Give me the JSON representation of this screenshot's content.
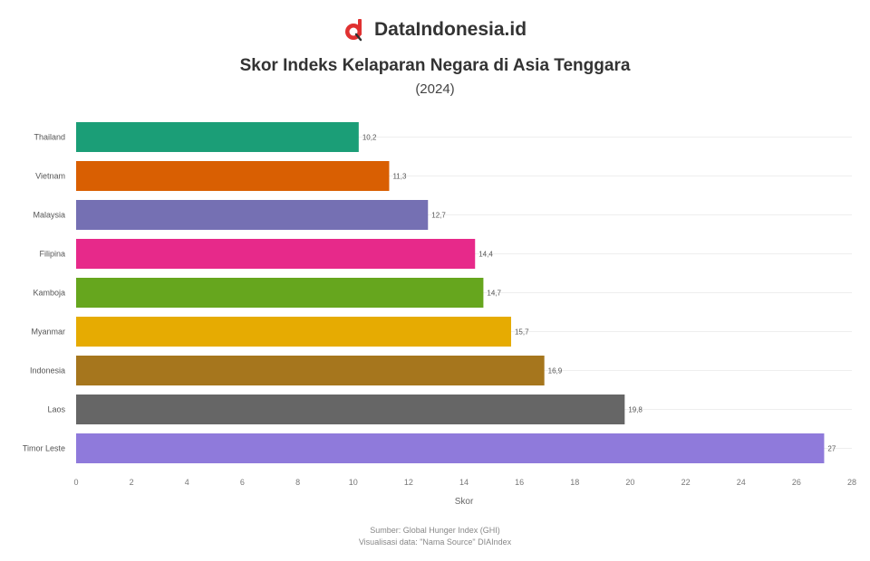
{
  "brand": {
    "name": "DataIndonesia.id",
    "logo_icon": "dataindonesia-logo-icon"
  },
  "footer": {
    "source": "Sumber: Global Hunger Index (GHI)",
    "credit": "Visualisasi data: \"Nama Source\" DIAIndex"
  },
  "colors": {
    "bar_colors": [
      "#1b9e77",
      "#d95f02",
      "#7570b3",
      "#e7298a",
      "#66a61e",
      "#e6ab02",
      "#a6761d",
      "#666666",
      "#8f7adb"
    ]
  },
  "chart_data": {
    "type": "bar",
    "orientation": "horizontal",
    "title": "Skor Indeks Kelaparan Negara di Asia Tenggara",
    "subtitle": "(2024)",
    "xlabel": "Skor",
    "ylabel": "",
    "categories": [
      "Thailand",
      "Vietnam",
      "Malaysia",
      "Filipina",
      "Kamboja",
      "Myanmar",
      "Indonesia",
      "Laos",
      "Timor Leste"
    ],
    "values": [
      10.2,
      11.3,
      12.7,
      14.4,
      14.7,
      15.7,
      16.9,
      19.8,
      27
    ],
    "value_labels": [
      "10,2",
      "11,3",
      "12,7",
      "14,4",
      "14,7",
      "15,7",
      "16,9",
      "19,8",
      "27"
    ],
    "xlim": [
      0,
      28
    ],
    "xticks": [
      "0",
      "2",
      "4",
      "6",
      "8",
      "10",
      "12",
      "14",
      "16",
      "18",
      "20",
      "22",
      "24",
      "26",
      "28"
    ],
    "grid": true,
    "legend": "none"
  }
}
